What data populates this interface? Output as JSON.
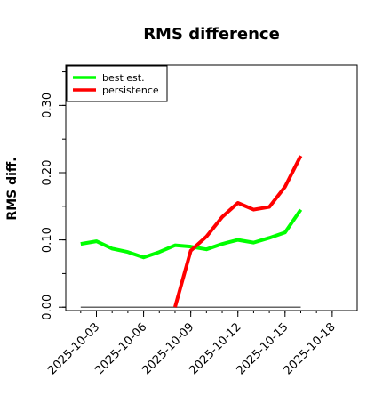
{
  "chart_data": {
    "type": "line",
    "title": "RMS difference",
    "xlabel": "",
    "ylabel": "RMS diff.",
    "ylim": [
      -0.005,
      0.36
    ],
    "xlim": [
      "2025-10-01",
      "2025-10-19"
    ],
    "grid": false,
    "legend_position": "top-left",
    "x_ticks": [
      "2025-10-03",
      "2025-10-06",
      "2025-10-09",
      "2025-10-12",
      "2025-10-15",
      "2025-10-18"
    ],
    "y_ticks": [
      0.0,
      0.1,
      0.2,
      0.3
    ],
    "y_tick_labels": [
      "0.00",
      "0.10",
      "0.20",
      "0.30"
    ],
    "series": [
      {
        "name": "best est.",
        "color": "#00ff00",
        "points": [
          {
            "x": "2025-10-02",
            "y": 0.094
          },
          {
            "x": "2025-10-03",
            "y": 0.098
          },
          {
            "x": "2025-10-04",
            "y": 0.087
          },
          {
            "x": "2025-10-05",
            "y": 0.082
          },
          {
            "x": "2025-10-06",
            "y": 0.074
          },
          {
            "x": "2025-10-07",
            "y": 0.082
          },
          {
            "x": "2025-10-08",
            "y": 0.092
          },
          {
            "x": "2025-10-09",
            "y": 0.09
          },
          {
            "x": "2025-10-10",
            "y": 0.086
          },
          {
            "x": "2025-10-11",
            "y": 0.094
          },
          {
            "x": "2025-10-12",
            "y": 0.1
          },
          {
            "x": "2025-10-13",
            "y": 0.096
          },
          {
            "x": "2025-10-14",
            "y": 0.103
          },
          {
            "x": "2025-10-15",
            "y": 0.111
          },
          {
            "x": "2025-10-16",
            "y": 0.145
          }
        ]
      },
      {
        "name": "persistence",
        "color": "#ff0000",
        "points": [
          {
            "x": "2025-10-08",
            "y": 0.0
          },
          {
            "x": "2025-10-09",
            "y": 0.084
          },
          {
            "x": "2025-10-10",
            "y": 0.105
          },
          {
            "x": "2025-10-11",
            "y": 0.134
          },
          {
            "x": "2025-10-12",
            "y": 0.155
          },
          {
            "x": "2025-10-13",
            "y": 0.145
          },
          {
            "x": "2025-10-14",
            "y": 0.149
          },
          {
            "x": "2025-10-15",
            "y": 0.179
          },
          {
            "x": "2025-10-16",
            "y": 0.225
          }
        ]
      }
    ],
    "reference_line": {
      "color": "#666666",
      "points": [
        {
          "x": "2025-10-02",
          "y": 0.0
        },
        {
          "x": "2025-10-16",
          "y": 0.0
        }
      ]
    }
  }
}
